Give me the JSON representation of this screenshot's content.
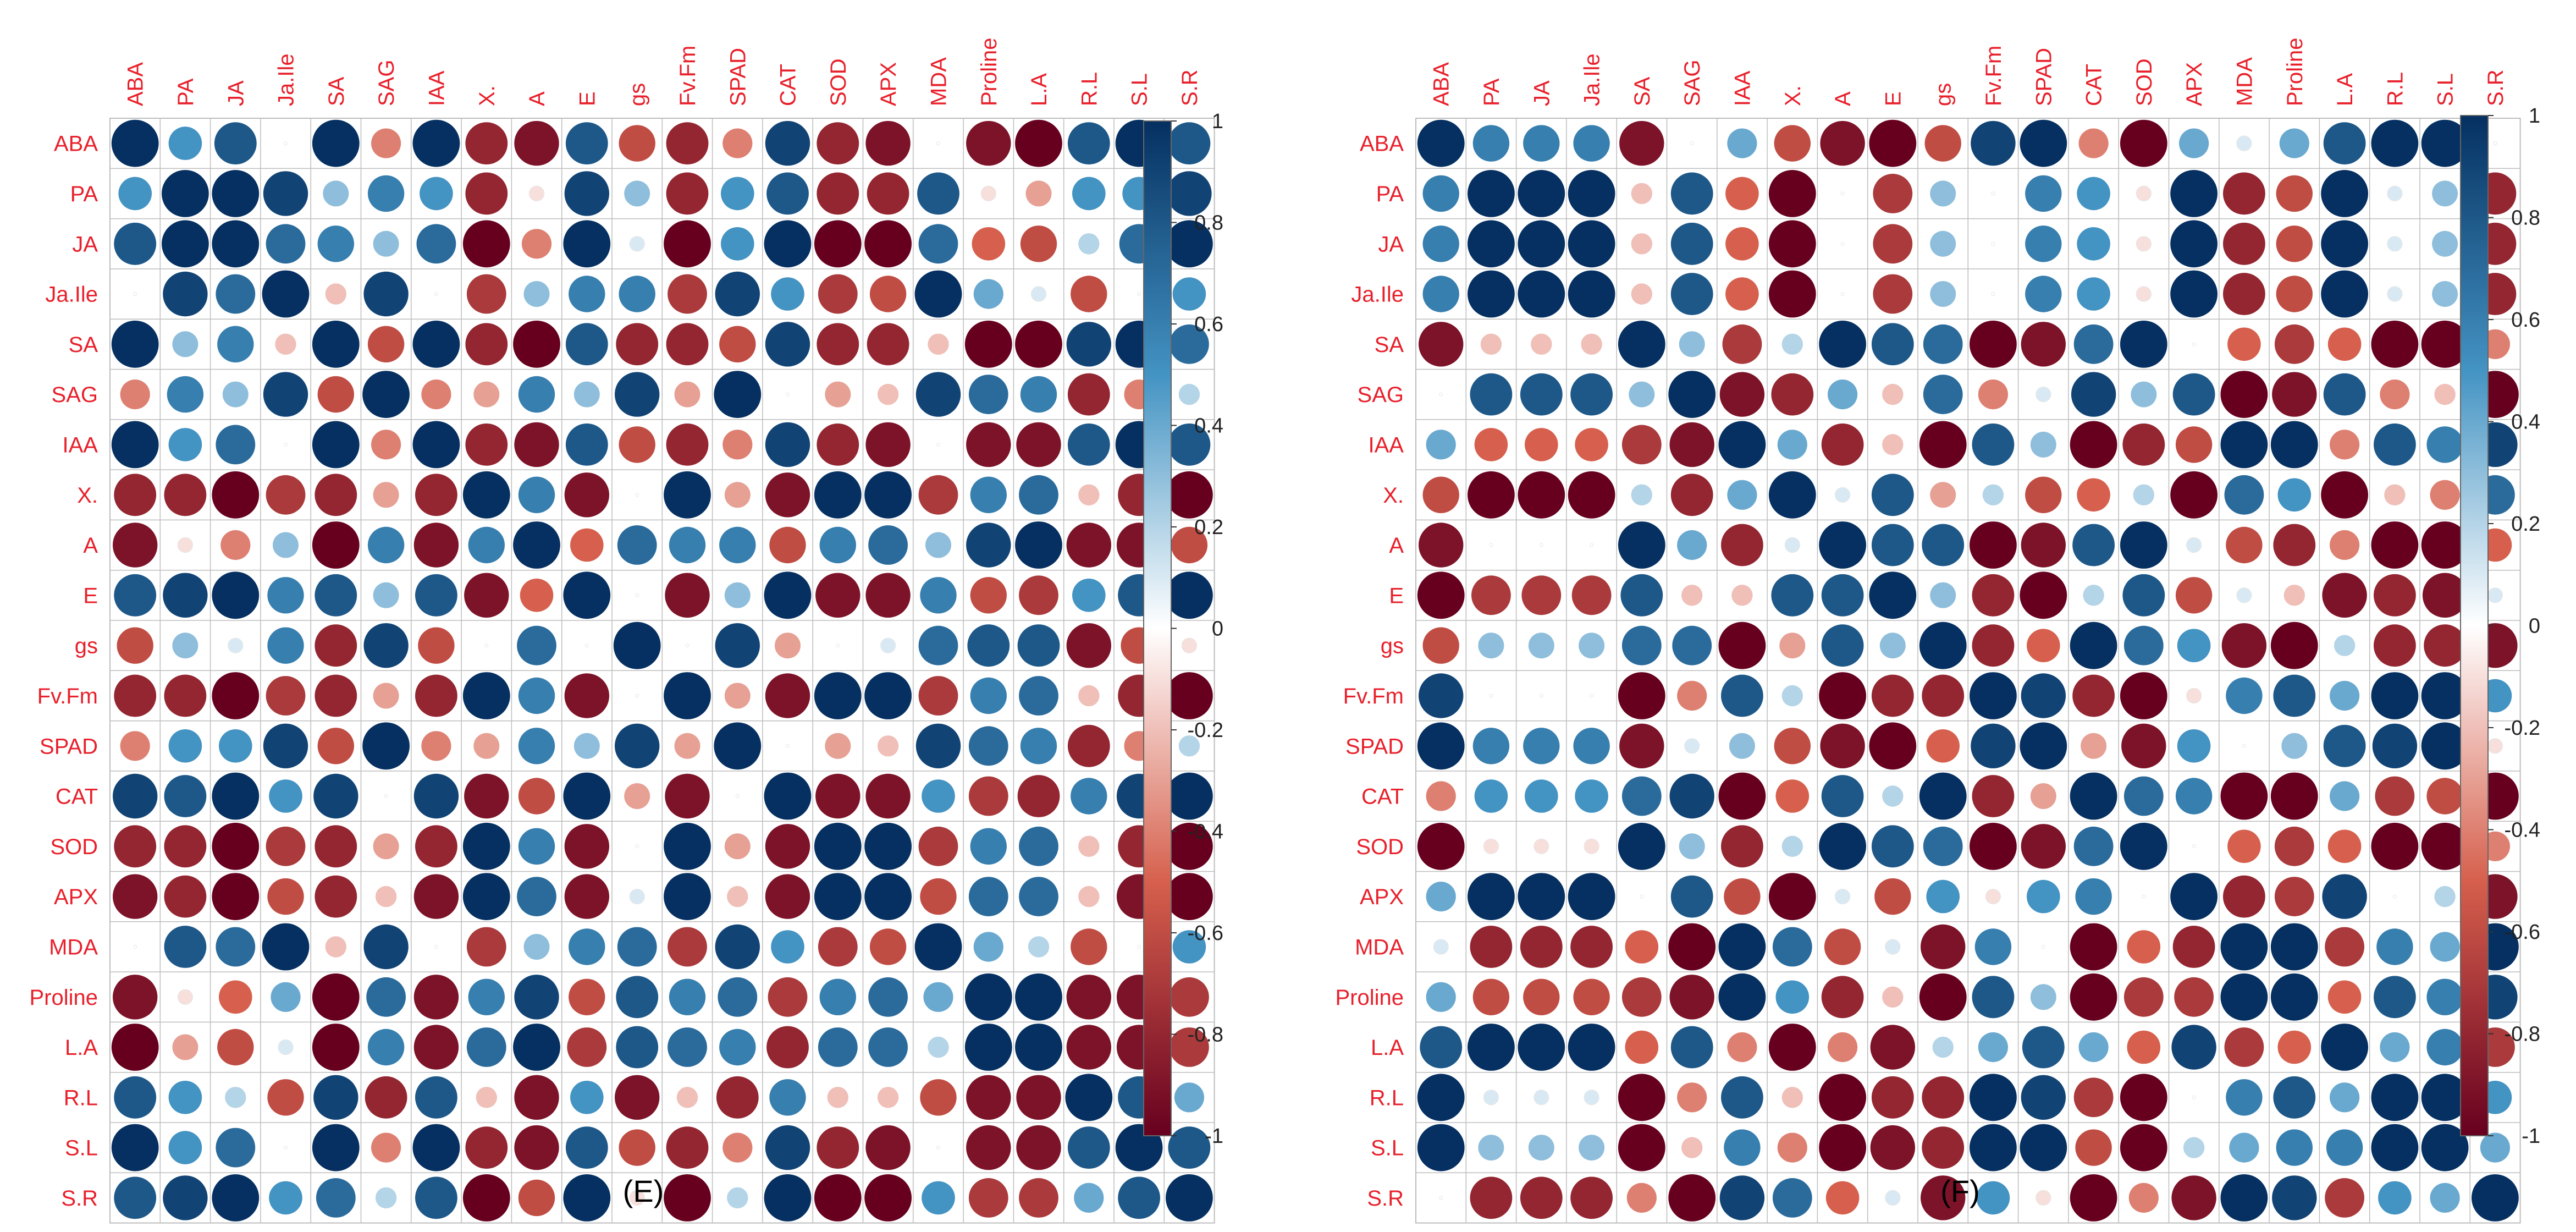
{
  "colors": {
    "label": "#e8202b",
    "grid": "#bdbdbd",
    "neg_strong": "#67001f",
    "neg_mid": "#d6604d",
    "neutral": "#ffffff",
    "pos_mid": "#4393c3",
    "pos_strong": "#053061"
  },
  "chart_data": [
    {
      "type": "heatmap",
      "panel_label": "(E)",
      "variables": [
        "ABA",
        "PA",
        "JA",
        "Ja.Ile",
        "SA",
        "SAG",
        "IAA",
        "X.",
        "A",
        "E",
        "gs",
        "Fv.Fm",
        "SPAD",
        "CAT",
        "SOD",
        "APX",
        "MDA",
        "Proline",
        "L.A",
        "R.L",
        "S.L",
        "S.R"
      ],
      "matrix": [
        [
          1,
          0.5,
          0.8,
          0,
          1,
          -0.4,
          1,
          -0.8,
          -0.9,
          0.8,
          -0.6,
          -0.8,
          -0.4,
          0.9,
          -0.8,
          -0.9,
          0,
          -0.9,
          -1,
          0.8,
          1,
          0.8
        ],
        [
          0.5,
          1,
          1,
          0.9,
          0.3,
          0.6,
          0.5,
          -0.8,
          -0.1,
          0.9,
          0.3,
          -0.8,
          0.5,
          0.8,
          -0.8,
          -0.8,
          0.8,
          -0.1,
          -0.3,
          0.5,
          0.5,
          0.9
        ],
        [
          0.8,
          1,
          1,
          0.7,
          0.6,
          0.3,
          0.7,
          -1,
          -0.4,
          1,
          0.1,
          -1,
          0.5,
          1,
          -1,
          -1,
          0.7,
          -0.5,
          -0.6,
          0.2,
          0.7,
          1
        ],
        [
          0,
          0.9,
          0.7,
          1,
          -0.2,
          0.9,
          0,
          -0.7,
          0.3,
          0.6,
          0.6,
          -0.7,
          0.9,
          0.5,
          -0.7,
          -0.6,
          1,
          0.4,
          0.1,
          -0.6,
          0,
          0.5
        ],
        [
          1,
          0.3,
          0.6,
          -0.2,
          1,
          -0.6,
          1,
          -0.8,
          -1,
          0.8,
          -0.8,
          -0.8,
          -0.6,
          0.9,
          -0.8,
          -0.8,
          -0.2,
          -1,
          -1,
          0.9,
          1,
          0.7
        ],
        [
          -0.4,
          0.6,
          0.3,
          0.9,
          -0.6,
          1,
          -0.4,
          -0.3,
          0.6,
          0.3,
          0.9,
          -0.3,
          1,
          0,
          -0.3,
          -0.2,
          0.9,
          0.7,
          0.6,
          -0.8,
          -0.4,
          0.2
        ],
        [
          1,
          0.5,
          0.7,
          0,
          1,
          -0.4,
          1,
          -0.8,
          -0.9,
          0.8,
          -0.6,
          -0.8,
          -0.4,
          0.9,
          -0.8,
          -0.9,
          0,
          -0.9,
          -0.9,
          0.8,
          1,
          0.8
        ],
        [
          -0.8,
          -0.8,
          -1,
          -0.7,
          -0.8,
          -0.3,
          -0.8,
          1,
          0.6,
          -0.9,
          0,
          1,
          -0.3,
          -0.9,
          1,
          1,
          -0.7,
          0.6,
          0.7,
          -0.2,
          -0.8,
          -1
        ],
        [
          -0.9,
          -0.1,
          -0.4,
          0.3,
          -1,
          0.6,
          -0.9,
          0.6,
          1,
          -0.5,
          0.7,
          0.6,
          0.6,
          -0.6,
          0.6,
          0.7,
          0.3,
          0.9,
          1,
          -0.9,
          -0.9,
          -0.6
        ],
        [
          0.8,
          0.9,
          1,
          0.6,
          0.8,
          0.3,
          0.8,
          -0.9,
          -0.5,
          1,
          0,
          -0.9,
          0.3,
          1,
          -0.9,
          -0.9,
          0.6,
          -0.6,
          -0.7,
          0.5,
          0.8,
          1
        ],
        [
          -0.6,
          0.3,
          0.1,
          0.6,
          -0.8,
          0.9,
          -0.6,
          0,
          0.7,
          0,
          1,
          0,
          0.9,
          -0.3,
          0,
          0.1,
          0.7,
          0.8,
          0.8,
          -0.9,
          -0.6,
          -0.1
        ],
        [
          -0.8,
          -0.8,
          -1,
          -0.7,
          -0.8,
          -0.3,
          -0.8,
          1,
          0.6,
          -0.9,
          0,
          1,
          -0.3,
          -0.9,
          1,
          1,
          -0.7,
          0.6,
          0.7,
          -0.2,
          -0.8,
          -1
        ],
        [
          -0.4,
          0.5,
          0.5,
          0.9,
          -0.6,
          1,
          -0.4,
          -0.3,
          0.6,
          0.3,
          0.9,
          -0.3,
          1,
          0,
          -0.3,
          -0.2,
          0.9,
          0.7,
          0.6,
          -0.8,
          -0.4,
          0.2
        ],
        [
          0.9,
          0.8,
          1,
          0.5,
          0.9,
          0,
          0.9,
          -0.9,
          -0.6,
          1,
          -0.3,
          -0.9,
          0,
          1,
          -0.9,
          -0.9,
          0.5,
          -0.7,
          -0.8,
          0.6,
          0.9,
          1
        ],
        [
          -0.8,
          -0.8,
          -1,
          -0.7,
          -0.8,
          -0.3,
          -0.8,
          1,
          0.6,
          -0.9,
          0,
          1,
          -0.3,
          -0.9,
          1,
          1,
          -0.7,
          0.6,
          0.7,
          -0.2,
          -0.8,
          -1
        ],
        [
          -0.9,
          -0.8,
          -1,
          -0.6,
          -0.8,
          -0.2,
          -0.9,
          1,
          0.7,
          -0.9,
          0.1,
          1,
          -0.2,
          -0.9,
          1,
          1,
          -0.6,
          0.7,
          0.7,
          -0.2,
          -0.9,
          -1
        ],
        [
          0,
          0.8,
          0.7,
          1,
          -0.2,
          0.9,
          0,
          -0.7,
          0.3,
          0.6,
          0.7,
          -0.7,
          0.9,
          0.5,
          -0.7,
          -0.6,
          1,
          0.4,
          0.2,
          -0.6,
          0,
          0.5
        ],
        [
          -0.9,
          -0.1,
          -0.5,
          0.4,
          -1,
          0.7,
          -0.9,
          0.6,
          0.9,
          -0.6,
          0.8,
          0.6,
          0.7,
          -0.7,
          0.6,
          0.7,
          0.4,
          1,
          1,
          -0.9,
          -0.9,
          -0.7
        ],
        [
          -1,
          -0.3,
          -0.6,
          0.1,
          -1,
          0.6,
          -0.9,
          0.7,
          1,
          -0.7,
          0.8,
          0.7,
          0.6,
          -0.8,
          0.7,
          0.7,
          0.2,
          1,
          1,
          -0.9,
          -0.9,
          -0.7
        ],
        [
          0.8,
          0.5,
          0.2,
          -0.6,
          0.9,
          -0.8,
          0.8,
          -0.2,
          -0.9,
          0.5,
          -0.9,
          -0.2,
          -0.8,
          0.6,
          -0.2,
          -0.2,
          -0.6,
          -0.9,
          -0.9,
          1,
          0.8,
          0.4
        ],
        [
          1,
          0.5,
          0.7,
          0,
          1,
          -0.4,
          1,
          -0.8,
          -0.9,
          0.8,
          -0.6,
          -0.8,
          -0.4,
          0.9,
          -0.8,
          -0.9,
          0,
          -0.9,
          -0.9,
          0.8,
          1,
          0.8
        ],
        [
          0.8,
          0.9,
          1,
          0.5,
          0.7,
          0.2,
          0.8,
          -1,
          -0.6,
          1,
          -0.1,
          -1,
          0.2,
          1,
          -1,
          -1,
          0.5,
          -0.7,
          -0.7,
          0.4,
          0.8,
          1
        ]
      ],
      "colorbar": {
        "range": [
          -1,
          1
        ],
        "ticks": [
          1,
          0.8,
          0.6,
          0.4,
          0.2,
          0,
          -0.2,
          -0.4,
          -0.6,
          -0.8,
          -1
        ]
      }
    },
    {
      "type": "heatmap",
      "panel_label": "(F)",
      "variables": [
        "ABA",
        "PA",
        "JA",
        "Ja.Ile",
        "SA",
        "SAG",
        "IAA",
        "X.",
        "A",
        "E",
        "gs",
        "Fv.Fm",
        "SPAD",
        "CAT",
        "SOD",
        "APX",
        "MDA",
        "Proline",
        "L.A",
        "R.L",
        "S.L",
        "S.R"
      ],
      "matrix": [
        [
          1,
          0.6,
          0.6,
          0.6,
          -0.9,
          0,
          0.4,
          -0.6,
          -0.9,
          -1,
          -0.6,
          0.9,
          1,
          -0.4,
          -1,
          0.4,
          0.1,
          0.4,
          0.8,
          1,
          1,
          0
        ],
        [
          0.6,
          1,
          1,
          1,
          -0.2,
          0.8,
          -0.5,
          -1,
          0,
          -0.7,
          0.3,
          0,
          0.6,
          0.5,
          -0.1,
          1,
          -0.8,
          -0.6,
          1,
          0.1,
          0.3,
          -0.8
        ],
        [
          0.6,
          1,
          1,
          1,
          -0.2,
          0.8,
          -0.5,
          -1,
          0,
          -0.7,
          0.3,
          0,
          0.6,
          0.5,
          -0.1,
          1,
          -0.8,
          -0.6,
          1,
          0.1,
          0.3,
          -0.8
        ],
        [
          0.6,
          1,
          1,
          1,
          -0.2,
          0.8,
          -0.5,
          -1,
          0,
          -0.7,
          0.3,
          0,
          0.6,
          0.5,
          -0.1,
          1,
          -0.8,
          -0.6,
          1,
          0.1,
          0.3,
          -0.8
        ],
        [
          -0.9,
          -0.2,
          -0.2,
          -0.2,
          1,
          0.3,
          -0.7,
          0.2,
          1,
          0.8,
          0.7,
          -1,
          -0.9,
          0.7,
          1,
          0,
          -0.5,
          -0.7,
          -0.5,
          -1,
          -1,
          -0.4
        ],
        [
          0,
          0.8,
          0.8,
          0.8,
          0.3,
          1,
          -0.9,
          -0.8,
          0.4,
          -0.2,
          0.7,
          -0.4,
          0.1,
          0.9,
          0.3,
          0.8,
          -1,
          -0.9,
          0.8,
          -0.4,
          -0.2,
          -1
        ],
        [
          0.4,
          -0.5,
          -0.5,
          -0.5,
          -0.7,
          -0.9,
          1,
          0.4,
          -0.8,
          -0.2,
          -1,
          0.8,
          0.3,
          -1,
          -0.8,
          -0.6,
          1,
          1,
          -0.4,
          0.8,
          0.6,
          0.9
        ],
        [
          -0.6,
          -1,
          -1,
          -1,
          0.2,
          -0.8,
          0.4,
          1,
          0.1,
          0.8,
          -0.3,
          0.2,
          -0.6,
          -0.5,
          0.2,
          -1,
          0.7,
          0.5,
          -1,
          -0.2,
          -0.4,
          0.7
        ],
        [
          -0.9,
          0,
          0,
          0,
          1,
          0.4,
          -0.8,
          0.1,
          1,
          0.8,
          0.8,
          -1,
          -0.9,
          0.8,
          1,
          0.1,
          -0.6,
          -0.8,
          -0.4,
          -1,
          -1,
          -0.5
        ],
        [
          -1,
          -0.7,
          -0.7,
          -0.7,
          0.8,
          -0.2,
          -0.2,
          0.8,
          0.8,
          1,
          0.3,
          -0.8,
          -1,
          0.2,
          0.8,
          -0.6,
          0.1,
          -0.2,
          -0.9,
          -0.8,
          -0.9,
          0.1
        ],
        [
          -0.6,
          0.3,
          0.3,
          0.3,
          0.7,
          0.7,
          -1,
          -0.3,
          0.8,
          0.3,
          1,
          -0.8,
          -0.5,
          1,
          0.7,
          0.5,
          -0.9,
          -1,
          0.2,
          -0.8,
          -0.8,
          -0.9
        ],
        [
          0.9,
          0,
          0,
          0,
          -1,
          -0.4,
          0.8,
          0.2,
          -1,
          -0.8,
          -0.8,
          1,
          0.9,
          -0.8,
          -1,
          -0.1,
          0.6,
          0.8,
          0.4,
          1,
          1,
          0.5
        ],
        [
          1,
          0.6,
          0.6,
          0.6,
          -0.9,
          0.1,
          0.3,
          -0.6,
          -0.9,
          -1,
          -0.5,
          0.9,
          1,
          -0.3,
          -0.9,
          0.5,
          0,
          0.3,
          0.8,
          0.9,
          1,
          -0.1
        ],
        [
          -0.4,
          0.5,
          0.5,
          0.5,
          0.7,
          0.9,
          -1,
          -0.5,
          0.8,
          0.2,
          1,
          -0.8,
          -0.3,
          1,
          0.7,
          0.6,
          -1,
          -1,
          0.4,
          -0.7,
          -0.6,
          -1
        ],
        [
          -1,
          -0.1,
          -0.1,
          -0.1,
          1,
          0.3,
          -0.8,
          0.2,
          1,
          0.8,
          0.7,
          -1,
          -0.9,
          0.7,
          1,
          0,
          -0.5,
          -0.7,
          -0.5,
          -1,
          -1,
          -0.4
        ],
        [
          0.4,
          1,
          1,
          1,
          0,
          0.8,
          -0.6,
          -1,
          0.1,
          -0.6,
          0.5,
          -0.1,
          0.5,
          0.6,
          0,
          1,
          -0.8,
          -0.7,
          0.9,
          0,
          0.2,
          -0.9
        ],
        [
          0.1,
          -0.8,
          -0.8,
          -0.8,
          -0.5,
          -1,
          1,
          0.7,
          -0.6,
          0.1,
          -0.9,
          0.6,
          0,
          -1,
          -0.5,
          -0.8,
          1,
          1,
          -0.7,
          0.6,
          0.4,
          1
        ],
        [
          0.4,
          -0.6,
          -0.6,
          -0.6,
          -0.7,
          -0.9,
          1,
          0.5,
          -0.8,
          -0.2,
          -1,
          0.8,
          0.3,
          -1,
          -0.7,
          -0.7,
          1,
          1,
          -0.5,
          0.8,
          0.6,
          0.9
        ],
        [
          0.8,
          1,
          1,
          1,
          -0.5,
          0.8,
          -0.4,
          -1,
          -0.4,
          -0.9,
          0.2,
          0.4,
          0.8,
          0.4,
          -0.5,
          0.9,
          -0.7,
          -0.5,
          1,
          0.4,
          0.6,
          -0.7
        ],
        [
          1,
          0.1,
          0.1,
          0.1,
          -1,
          -0.4,
          0.8,
          -0.2,
          -1,
          -0.8,
          -0.8,
          1,
          0.9,
          -0.7,
          -1,
          0,
          0.6,
          0.8,
          0.4,
          1,
          1,
          0.5
        ],
        [
          1,
          0.3,
          0.3,
          0.3,
          -1,
          -0.2,
          0.6,
          -0.4,
          -1,
          -0.9,
          -0.8,
          1,
          1,
          -0.6,
          -1,
          0.2,
          0.4,
          0.6,
          0.6,
          1,
          1,
          0.4
        ],
        [
          0,
          -0.8,
          -0.8,
          -0.8,
          -0.4,
          -1,
          0.9,
          0.7,
          -0.5,
          0.1,
          -0.9,
          0.5,
          -0.1,
          -1,
          -0.4,
          -0.9,
          1,
          0.9,
          -0.7,
          0.5,
          0.4,
          1
        ]
      ],
      "colorbar": {
        "range": [
          -1,
          1
        ],
        "ticks": [
          1,
          0.8,
          0.6,
          0.4,
          0.2,
          0,
          -0.2,
          -0.4,
          -0.6,
          -0.8,
          -1
        ]
      }
    }
  ]
}
